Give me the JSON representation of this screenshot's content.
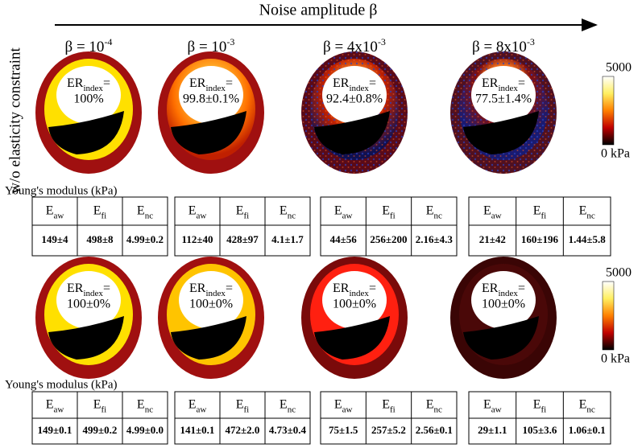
{
  "header": {
    "axis_label": "Noise amplitude β"
  },
  "columns": [
    {
      "base": "β = 10",
      "sup": "-4"
    },
    {
      "base": "β = 10",
      "sup": "-3"
    },
    {
      "base": "β = 4x10",
      "sup": "-3"
    },
    {
      "base": "β = 8x10",
      "sup": "-3"
    }
  ],
  "row_label": "w/o elasticity constraint",
  "er_label": {
    "main": "ER",
    "sub": "index",
    "tail": "="
  },
  "table_caption": "Young's modulus (kPa)",
  "table_headers": [
    {
      "main": "E",
      "sub": "aw"
    },
    {
      "main": "E",
      "sub": "fi"
    },
    {
      "main": "E",
      "sub": "nc"
    }
  ],
  "colorbar": {
    "max": "5000",
    "min": "0 kPa"
  },
  "rows": [
    {
      "er": [
        "100%",
        "99.8±0.1%",
        "92.4±0.8%",
        "77.5±1.4%"
      ],
      "tables": [
        [
          "149±4",
          "498±8",
          "4.99±0.2"
        ],
        [
          "112±40",
          "428±97",
          "4.1±1.7"
        ],
        [
          "44±56",
          "256±200",
          "2.16±4.3"
        ],
        [
          "21±42",
          "160±196",
          "1.44±5.8"
        ]
      ]
    },
    {
      "er": [
        "100±0%",
        "100±0%",
        "100±0%",
        "100±0%"
      ],
      "tables": [
        [
          "149±0.1",
          "499±0.2",
          "4.99±0.0"
        ],
        [
          "141±0.1",
          "472±2.0",
          "4.73±0.4"
        ],
        [
          "75±1.5",
          "257±5.2",
          "2.56±0.1"
        ],
        [
          "29±1.1",
          "105±3.6",
          "1.06±0.1"
        ]
      ]
    }
  ]
}
